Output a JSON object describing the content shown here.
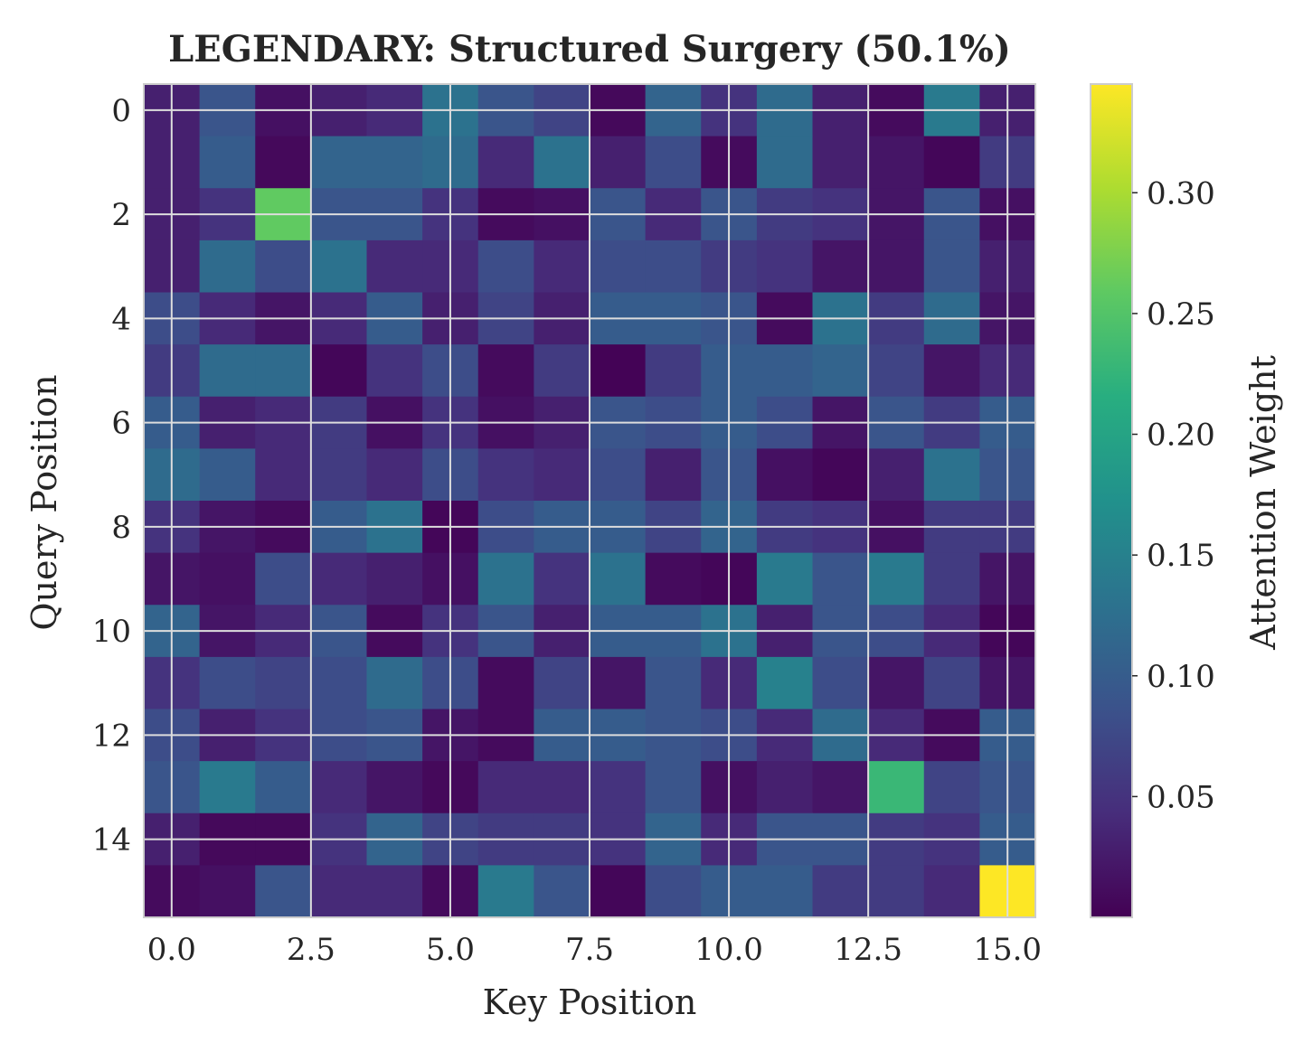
{
  "chart_data": {
    "type": "heatmap",
    "title": "LEGENDARY: Structured Surgery (50.1%)",
    "xlabel": "Key Position",
    "ylabel": "Query Position",
    "colorbar_label": "Attention Weight",
    "colormap": "viridis",
    "x_ticks": [
      "0.0",
      "2.5",
      "5.0",
      "7.5",
      "10.0",
      "12.5",
      "15.0"
    ],
    "y_ticks": [
      "0",
      "2",
      "4",
      "6",
      "8",
      "10",
      "12",
      "14"
    ],
    "colorbar_ticks": [
      "0.05",
      "0.10",
      "0.15",
      "0.20",
      "0.25",
      "0.30"
    ],
    "color_range": [
      0.0,
      0.345
    ],
    "grid": true,
    "values": [
      [
        0.03,
        0.09,
        0.015,
        0.03,
        0.04,
        0.13,
        0.09,
        0.07,
        0.008,
        0.11,
        0.05,
        0.12,
        0.03,
        0.01,
        0.14,
        0.03
      ],
      [
        0.03,
        0.1,
        0.008,
        0.11,
        0.11,
        0.12,
        0.04,
        0.13,
        0.03,
        0.08,
        0.01,
        0.12,
        0.03,
        0.02,
        0.005,
        0.06
      ],
      [
        0.03,
        0.05,
        0.26,
        0.09,
        0.09,
        0.05,
        0.01,
        0.015,
        0.09,
        0.04,
        0.09,
        0.06,
        0.05,
        0.02,
        0.09,
        0.015
      ],
      [
        0.03,
        0.12,
        0.08,
        0.13,
        0.04,
        0.04,
        0.08,
        0.04,
        0.08,
        0.08,
        0.06,
        0.05,
        0.02,
        0.02,
        0.09,
        0.03
      ],
      [
        0.08,
        0.04,
        0.02,
        0.04,
        0.1,
        0.03,
        0.07,
        0.03,
        0.1,
        0.1,
        0.09,
        0.01,
        0.13,
        0.06,
        0.12,
        0.02
      ],
      [
        0.06,
        0.12,
        0.12,
        0.005,
        0.05,
        0.08,
        0.01,
        0.06,
        0.002,
        0.06,
        0.1,
        0.1,
        0.11,
        0.07,
        0.02,
        0.04
      ],
      [
        0.1,
        0.03,
        0.04,
        0.06,
        0.015,
        0.05,
        0.015,
        0.03,
        0.09,
        0.08,
        0.1,
        0.08,
        0.02,
        0.09,
        0.06,
        0.1
      ],
      [
        0.12,
        0.1,
        0.04,
        0.06,
        0.04,
        0.08,
        0.05,
        0.04,
        0.08,
        0.03,
        0.09,
        0.015,
        0.005,
        0.03,
        0.13,
        0.09
      ],
      [
        0.05,
        0.02,
        0.01,
        0.1,
        0.13,
        0.005,
        0.08,
        0.1,
        0.1,
        0.07,
        0.11,
        0.06,
        0.05,
        0.015,
        0.06,
        0.06
      ],
      [
        0.02,
        0.015,
        0.08,
        0.04,
        0.03,
        0.015,
        0.13,
        0.05,
        0.13,
        0.01,
        0.005,
        0.14,
        0.09,
        0.14,
        0.06,
        0.02
      ],
      [
        0.11,
        0.02,
        0.04,
        0.09,
        0.01,
        0.05,
        0.09,
        0.03,
        0.1,
        0.1,
        0.13,
        0.03,
        0.09,
        0.08,
        0.04,
        0.005
      ],
      [
        0.05,
        0.08,
        0.07,
        0.08,
        0.12,
        0.08,
        0.01,
        0.07,
        0.02,
        0.09,
        0.04,
        0.15,
        0.08,
        0.02,
        0.07,
        0.02
      ],
      [
        0.08,
        0.03,
        0.05,
        0.08,
        0.09,
        0.02,
        0.01,
        0.1,
        0.1,
        0.09,
        0.08,
        0.04,
        0.12,
        0.04,
        0.01,
        0.1
      ],
      [
        0.09,
        0.14,
        0.1,
        0.04,
        0.02,
        0.008,
        0.04,
        0.04,
        0.05,
        0.09,
        0.015,
        0.03,
        0.02,
        0.23,
        0.07,
        0.09
      ],
      [
        0.03,
        0.008,
        0.008,
        0.05,
        0.11,
        0.07,
        0.06,
        0.06,
        0.05,
        0.11,
        0.04,
        0.09,
        0.09,
        0.06,
        0.05,
        0.1
      ],
      [
        0.01,
        0.015,
        0.09,
        0.04,
        0.04,
        0.01,
        0.14,
        0.09,
        0.005,
        0.08,
        0.1,
        0.1,
        0.06,
        0.06,
        0.04,
        0.345
      ]
    ]
  }
}
